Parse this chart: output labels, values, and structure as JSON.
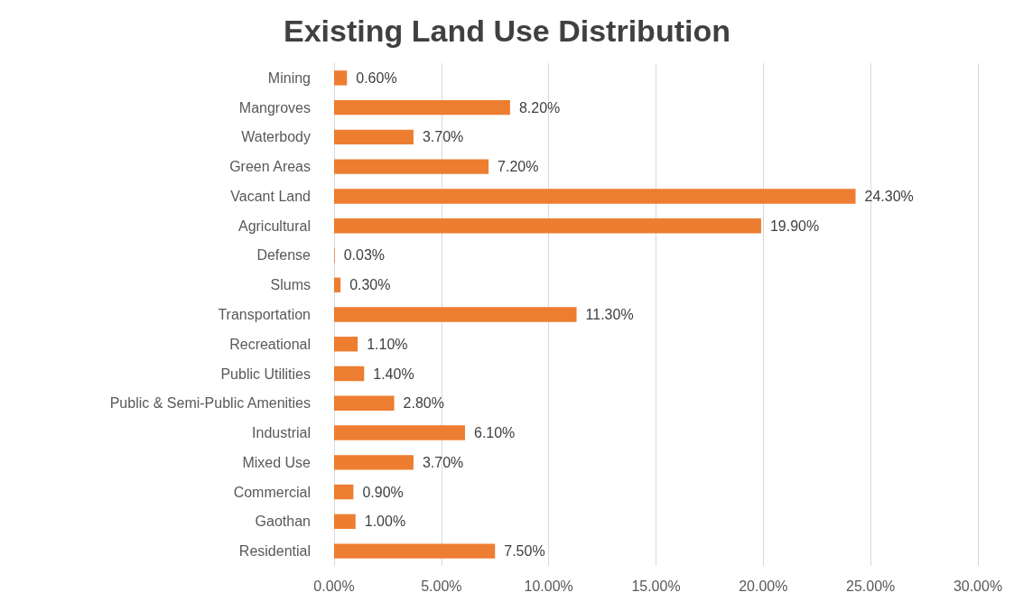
{
  "chart_data": {
    "type": "bar",
    "title": "Existing Land Use Distribution",
    "orientation": "horizontal",
    "categories": [
      "Mining",
      "Mangroves",
      "Waterbody",
      "Green Areas",
      "Vacant Land",
      "Agricultural",
      "Defense",
      "Slums",
      "Transportation",
      "Recreational",
      "Public Utilities",
      "Public & Semi-Public Amenities",
      "Industrial",
      "Mixed Use",
      "Commercial",
      "Gaothan",
      "Residential"
    ],
    "values": [
      0.6,
      8.2,
      3.7,
      7.2,
      24.3,
      19.9,
      0.03,
      0.3,
      11.3,
      1.1,
      1.4,
      2.8,
      6.1,
      3.7,
      0.9,
      1.0,
      7.5
    ],
    "value_labels": [
      "0.60%",
      "8.20%",
      "3.70%",
      "7.20%",
      "24.30%",
      "19.90%",
      "0.03%",
      "0.30%",
      "11.30%",
      "1.10%",
      "1.40%",
      "2.80%",
      "6.10%",
      "3.70%",
      "0.90%",
      "1.00%",
      "7.50%"
    ],
    "color": "#ed7d31",
    "xlim": [
      0,
      30
    ],
    "xticks": [
      {
        "value": 0,
        "label": "0.00%"
      },
      {
        "value": 5,
        "label": "5.00%"
      },
      {
        "value": 10,
        "label": "10.00%"
      },
      {
        "value": 15,
        "label": "15.00%"
      },
      {
        "value": 20,
        "label": "20.00%"
      },
      {
        "value": 25,
        "label": "25.00%"
      },
      {
        "value": 30,
        "label": "30.00%"
      }
    ],
    "grid": "x"
  }
}
